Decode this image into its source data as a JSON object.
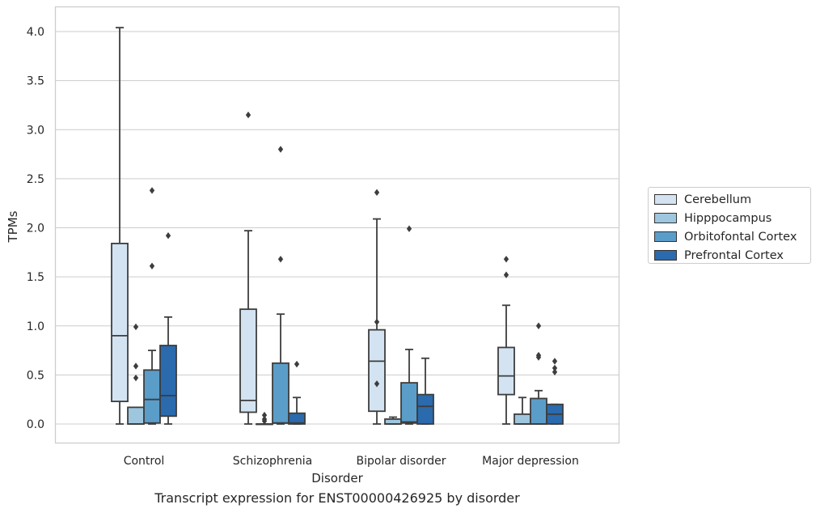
{
  "caption": "Transcript expression for ENST00000426925 by disorder",
  "chart_data": {
    "type": "boxplot",
    "title": "",
    "xlabel": "Disorder",
    "ylabel": "TPMs",
    "ylim": [
      -0.2,
      4.22
    ],
    "yticks": [
      "0.0",
      "0.5",
      "1.0",
      "1.5",
      "2.0",
      "2.5",
      "3.0",
      "3.5",
      "4.0"
    ],
    "grid": "horizontal",
    "legend_position": "right-outside",
    "categories": [
      "Control",
      "Schizophrenia",
      "Bipolar disorder",
      "Major depression"
    ],
    "series": [
      {
        "name": "Cerebellum",
        "color": "#d3e3f2",
        "boxes": [
          {
            "q1": 0.23,
            "median": 0.9,
            "q3": 1.84,
            "whislo": 0.0,
            "whishi": 4.04,
            "fliers": []
          },
          {
            "q1": 0.12,
            "median": 0.24,
            "q3": 1.17,
            "whislo": 0.0,
            "whishi": 1.97,
            "fliers": [
              3.15
            ]
          },
          {
            "q1": 0.13,
            "median": 0.64,
            "q3": 0.96,
            "whislo": 0.0,
            "whishi": 2.09,
            "fliers": [
              2.36,
              1.04,
              0.41
            ]
          },
          {
            "q1": 0.3,
            "median": 0.49,
            "q3": 0.78,
            "whislo": 0.0,
            "whishi": 1.21,
            "fliers": [
              1.68,
              1.52
            ]
          }
        ]
      },
      {
        "name": "Hipppocampus",
        "color": "#9ec6de",
        "boxes": [
          {
            "q1": 0.0,
            "median": 0.0,
            "q3": 0.17,
            "whislo": 0.0,
            "whishi": 0.17,
            "fliers": [
              0.99,
              0.59,
              0.47
            ]
          },
          {
            "q1": 0.0,
            "median": 0.0,
            "q3": 0.0,
            "whislo": 0.0,
            "whishi": 0.0,
            "fliers": [
              0.09,
              0.05,
              0.03
            ]
          },
          {
            "q1": 0.0,
            "median": 0.0,
            "q3": 0.05,
            "whislo": 0.0,
            "whishi": 0.07,
            "fliers": []
          },
          {
            "q1": 0.0,
            "median": 0.0,
            "q3": 0.1,
            "whislo": 0.0,
            "whishi": 0.27,
            "fliers": []
          }
        ]
      },
      {
        "name": "Orbitofontal Cortex",
        "color": "#5b9dc9",
        "boxes": [
          {
            "q1": 0.01,
            "median": 0.25,
            "q3": 0.55,
            "whislo": 0.0,
            "whishi": 0.75,
            "fliers": [
              2.38,
              1.61
            ]
          },
          {
            "q1": 0.01,
            "median": 0.01,
            "q3": 0.62,
            "whislo": 0.0,
            "whishi": 1.12,
            "fliers": [
              2.8,
              1.68
            ]
          },
          {
            "q1": 0.01,
            "median": 0.02,
            "q3": 0.42,
            "whislo": 0.0,
            "whishi": 0.76,
            "fliers": [
              1.99
            ]
          },
          {
            "q1": 0.0,
            "median": 0.0,
            "q3": 0.26,
            "whislo": 0.0,
            "whishi": 0.34,
            "fliers": [
              1.0,
              0.7,
              0.68
            ]
          }
        ]
      },
      {
        "name": "Prefrontal Cortex",
        "color": "#2a6aad",
        "boxes": [
          {
            "q1": 0.08,
            "median": 0.29,
            "q3": 0.8,
            "whislo": 0.0,
            "whishi": 1.09,
            "fliers": [
              1.92
            ]
          },
          {
            "q1": 0.0,
            "median": 0.01,
            "q3": 0.11,
            "whislo": 0.0,
            "whishi": 0.27,
            "fliers": [
              0.61
            ]
          },
          {
            "q1": 0.0,
            "median": 0.18,
            "q3": 0.3,
            "whislo": 0.0,
            "whishi": 0.67,
            "fliers": []
          },
          {
            "q1": 0.0,
            "median": 0.1,
            "q3": 0.2,
            "whislo": 0.0,
            "whishi": 0.2,
            "fliers": [
              0.64,
              0.57,
              0.53
            ]
          }
        ]
      }
    ]
  }
}
